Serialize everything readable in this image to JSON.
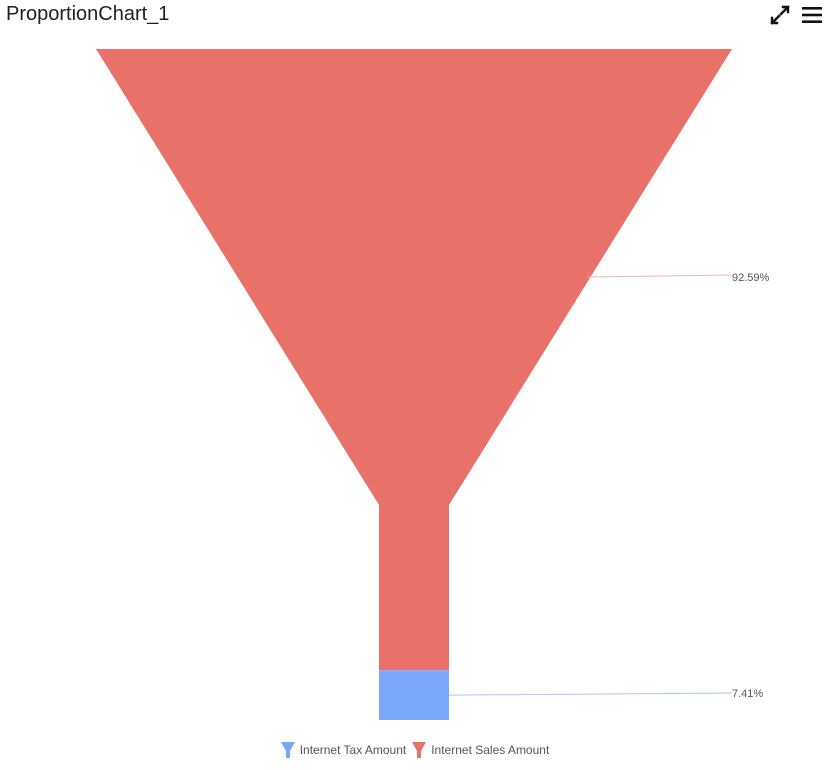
{
  "header": {
    "title": "ProportionChart_1",
    "expand_icon": "expand-icon",
    "menu_icon": "hamburger-menu-icon"
  },
  "colors": {
    "sales": "#e8726a",
    "tax": "#7aa7fa",
    "sales_connector": "#f4b3ad",
    "tax_connector": "#a9c6f7",
    "label_text": "#555555"
  },
  "chart_data": {
    "type": "funnel",
    "title": "ProportionChart_1",
    "series": [
      {
        "name": "Internet Sales Amount",
        "percent": 92.59,
        "label": "92.59%"
      },
      {
        "name": "Internet Tax Amount",
        "percent": 7.41,
        "label": "7.41%"
      }
    ],
    "legend": {
      "placement": "bottom-center",
      "entries": [
        "Internet Tax Amount",
        "Internet Sales Amount"
      ]
    }
  }
}
